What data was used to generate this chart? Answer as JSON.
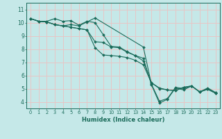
{
  "xlabel": "Humidex (Indice chaleur)",
  "xlim": [
    -0.5,
    23.5
  ],
  "ylim": [
    3.5,
    11.5
  ],
  "yticks": [
    4,
    5,
    6,
    7,
    8,
    9,
    10,
    11
  ],
  "xticks": [
    0,
    1,
    2,
    3,
    4,
    5,
    6,
    7,
    8,
    9,
    10,
    11,
    12,
    13,
    14,
    15,
    16,
    17,
    18,
    19,
    20,
    21,
    22,
    23
  ],
  "bg_color": "#c5e8e8",
  "grid_color": "#e8c5c5",
  "line_color": "#1a6b5a",
  "lines": [
    {
      "x": [
        0,
        1,
        2,
        3,
        4,
        5,
        6,
        7,
        8,
        9,
        10,
        11,
        12,
        13,
        14,
        15,
        16,
        17,
        18,
        19,
        20,
        21,
        22,
        23
      ],
      "y": [
        10.3,
        10.1,
        10.1,
        10.3,
        10.1,
        10.15,
        9.8,
        10.1,
        10.0,
        9.1,
        8.2,
        8.15,
        7.8,
        7.5,
        7.3,
        5.3,
        3.9,
        4.2,
        5.05,
        4.9,
        5.2,
        4.75,
        5.0,
        4.65
      ]
    },
    {
      "x": [
        0,
        1,
        2,
        3,
        4,
        5,
        6,
        7,
        8,
        9,
        10,
        11,
        12,
        13,
        14,
        15,
        16,
        17,
        18,
        19,
        20,
        21,
        22,
        23
      ],
      "y": [
        10.3,
        10.1,
        10.05,
        9.85,
        9.75,
        9.65,
        9.55,
        9.45,
        8.1,
        7.55,
        7.5,
        7.45,
        7.35,
        7.15,
        6.8,
        5.45,
        5.05,
        4.9,
        4.85,
        5.1,
        5.2,
        4.75,
        4.95,
        4.65
      ]
    },
    {
      "x": [
        0,
        1,
        2,
        3,
        4,
        5,
        6,
        7,
        8,
        14,
        15,
        16,
        17,
        18,
        19,
        20,
        21,
        22,
        23
      ],
      "y": [
        10.3,
        10.1,
        10.05,
        9.85,
        9.75,
        9.85,
        9.75,
        10.05,
        10.35,
        8.15,
        5.35,
        4.05,
        4.25,
        5.1,
        5.0,
        5.2,
        4.75,
        5.05,
        4.7
      ]
    },
    {
      "x": [
        0,
        1,
        2,
        3,
        4,
        5,
        6,
        7,
        8,
        9,
        10,
        11,
        12,
        13,
        14,
        15,
        16,
        17,
        18,
        19,
        20,
        21,
        22,
        23
      ],
      "y": [
        10.3,
        10.1,
        10.05,
        9.85,
        9.75,
        9.65,
        9.55,
        9.45,
        8.55,
        8.5,
        8.15,
        8.1,
        7.75,
        7.5,
        7.1,
        5.45,
        5.0,
        4.9,
        4.85,
        5.1,
        5.2,
        4.75,
        4.95,
        4.65
      ]
    }
  ]
}
